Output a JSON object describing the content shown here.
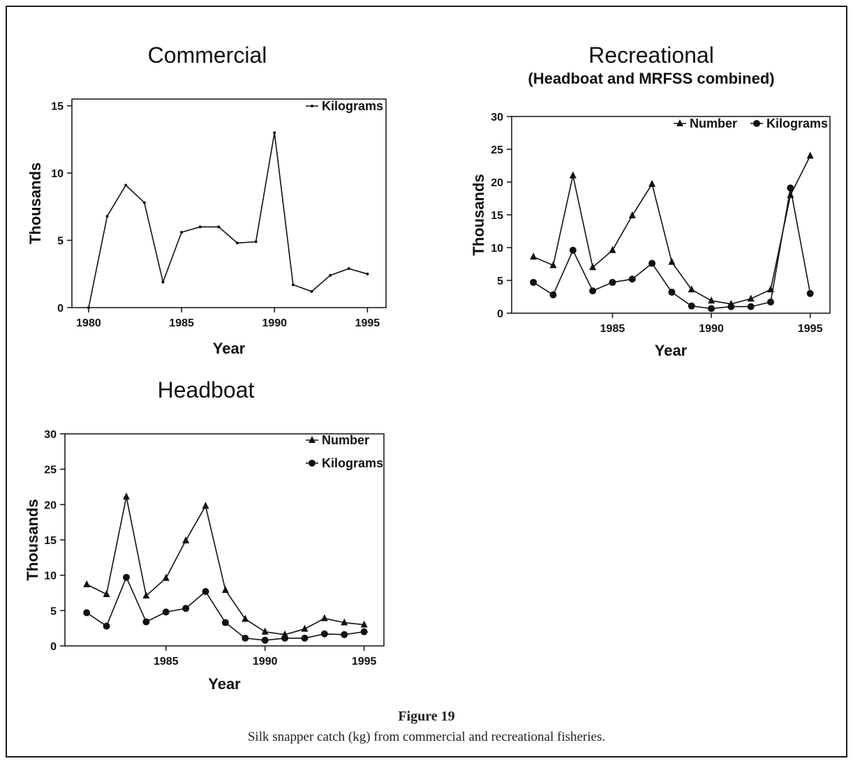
{
  "figure": {
    "label": "Figure 19",
    "caption": "Silk snapper catch (kg) from commercial and recreational fisheries."
  },
  "chart_data": [
    {
      "id": "commercial",
      "type": "line",
      "title": "Commercial",
      "subtitle": "",
      "xlabel": "Year",
      "ylabel": "Thousands",
      "xlim": [
        1979.1,
        1996
      ],
      "ylim": [
        0,
        15.5
      ],
      "xticks": [
        1980,
        1985,
        1990,
        1995
      ],
      "yticks": [
        0,
        5,
        10,
        15
      ],
      "legend_position": "top-right",
      "series": [
        {
          "name": "Kilograms",
          "marker": "dot",
          "x": [
            1980,
            1981,
            1982,
            1983,
            1984,
            1985,
            1986,
            1987,
            1988,
            1989,
            1990,
            1991,
            1992,
            1993,
            1994,
            1995
          ],
          "y": [
            0,
            6.8,
            9.1,
            7.8,
            1.9,
            5.6,
            6.0,
            6.0,
            4.8,
            4.9,
            13.0,
            1.7,
            1.2,
            2.4,
            2.9,
            2.5
          ]
        }
      ]
    },
    {
      "id": "recreational",
      "type": "line",
      "title": "Recreational",
      "subtitle": "(Headboat and MRFSS combined)",
      "xlabel": "Year",
      "ylabel": "Thousands",
      "xlim": [
        1979.9,
        1996
      ],
      "ylim": [
        0,
        30
      ],
      "xticks": [
        1985,
        1990,
        1995
      ],
      "yticks": [
        0,
        5,
        10,
        15,
        20,
        25,
        30
      ],
      "legend_position": "top-right",
      "series": [
        {
          "name": "Number",
          "marker": "triangle",
          "x": [
            1981,
            1982,
            1983,
            1984,
            1985,
            1986,
            1987,
            1988,
            1989,
            1990,
            1991,
            1992,
            1993,
            1994,
            1995
          ],
          "y": [
            8.6,
            7.3,
            21.0,
            7.0,
            9.6,
            14.9,
            19.7,
            7.8,
            3.6,
            1.9,
            1.4,
            2.2,
            3.6,
            18.0,
            24.0
          ]
        },
        {
          "name": "Kilograms",
          "marker": "circle",
          "x": [
            1981,
            1982,
            1983,
            1984,
            1985,
            1986,
            1987,
            1988,
            1989,
            1990,
            1991,
            1992,
            1993,
            1994,
            1995
          ],
          "y": [
            4.7,
            2.8,
            9.6,
            3.4,
            4.7,
            5.2,
            7.6,
            3.2,
            1.1,
            0.7,
            1.0,
            1.0,
            1.7,
            19.1,
            3.0
          ]
        }
      ]
    },
    {
      "id": "headboat",
      "type": "line",
      "title": "Headboat",
      "subtitle": "",
      "xlabel": "Year",
      "ylabel": "Thousands",
      "xlim": [
        1979.9,
        1996
      ],
      "ylim": [
        0,
        30
      ],
      "xticks": [
        1985,
        1990,
        1995
      ],
      "yticks": [
        0,
        5,
        10,
        15,
        20,
        25,
        30
      ],
      "legend_position": "top-right",
      "series": [
        {
          "name": "Number",
          "marker": "triangle",
          "x": [
            1981,
            1982,
            1983,
            1984,
            1985,
            1986,
            1987,
            1988,
            1989,
            1990,
            1991,
            1992,
            1993,
            1994,
            1995
          ],
          "y": [
            8.7,
            7.3,
            21.1,
            7.1,
            9.6,
            14.9,
            19.8,
            7.9,
            3.8,
            2.0,
            1.6,
            2.4,
            3.9,
            3.3,
            3.0
          ]
        },
        {
          "name": "Kilograms",
          "marker": "circle",
          "x": [
            1981,
            1982,
            1983,
            1984,
            1985,
            1986,
            1987,
            1988,
            1989,
            1990,
            1991,
            1992,
            1993,
            1994,
            1995
          ],
          "y": [
            4.7,
            2.8,
            9.7,
            3.4,
            4.8,
            5.3,
            7.7,
            3.3,
            1.1,
            0.8,
            1.1,
            1.1,
            1.7,
            1.6,
            2.0
          ]
        }
      ]
    }
  ]
}
